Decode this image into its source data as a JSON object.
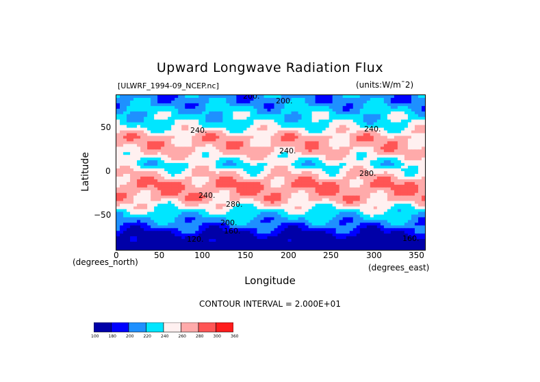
{
  "title": "Upward Longwave Radiation Flux",
  "file_label": "[ULWRF_1994-09_NCEP.nc]",
  "units_label": "(units:W/m¯2)",
  "contour_interval": "CONTOUR INTERVAL = 2.000E+01",
  "colors": {
    "levels": [
      "#0000a8",
      "#0000ff",
      "#1e90ff",
      "#00e6ff",
      "#fff0f0",
      "#ffaaaa",
      "#ff5555",
      "#ff1c1c"
    ],
    "level_labels": [
      "100",
      "160",
      "180",
      "200",
      "220",
      "240",
      "260",
      "280",
      "300",
      "360"
    ]
  },
  "chart_data": {
    "type": "heatmap",
    "title": "Upward Longwave Radiation Flux",
    "xlabel": "Longitude",
    "ylabel": "Latitude",
    "x_units": "(degrees_east)",
    "y_units": "(degrees_north)",
    "xlim": [
      0,
      360
    ],
    "ylim": [
      -90,
      90
    ],
    "xticks": [
      "0",
      "50",
      "100",
      "150",
      "200",
      "250",
      "300",
      "350"
    ],
    "yticks": [
      "50",
      "0",
      "−50"
    ],
    "contour_labels": [
      "200",
      "200",
      "240",
      "240",
      "240",
      "240",
      "280",
      "280",
      "200",
      "160",
      "120",
      "160"
    ],
    "latitude_band_values": [
      {
        "lat": 82,
        "value": 210
      },
      {
        "lat": 70,
        "value": 225
      },
      {
        "lat": 55,
        "value": 238
      },
      {
        "lat": 40,
        "value": 270
      },
      {
        "lat": 25,
        "value": 265
      },
      {
        "lat": 10,
        "value": 235
      },
      {
        "lat": 0,
        "value": 255
      },
      {
        "lat": -15,
        "value": 280
      },
      {
        "lat": -30,
        "value": 270
      },
      {
        "lat": -45,
        "value": 235
      },
      {
        "lat": -55,
        "value": 215
      },
      {
        "lat": -65,
        "value": 195
      },
      {
        "lat": -75,
        "value": 170
      },
      {
        "lat": -85,
        "value": 150
      }
    ]
  }
}
